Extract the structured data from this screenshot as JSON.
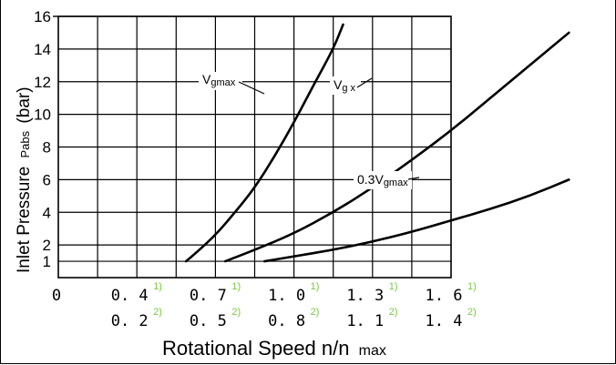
{
  "chart_data": {
    "type": "line",
    "title": "",
    "ylabel": "Inlet Pressure",
    "ylabel_sub": "Pabs",
    "ylabel_unit": "(bar)",
    "xlabel": "Rotational Speed n/n",
    "xlabel_sub": "max",
    "ylim": [
      0,
      16
    ],
    "y_ticks": [
      "1",
      "2",
      "4",
      "6",
      "8",
      "10",
      "12",
      "14",
      "16"
    ],
    "y_tick_values": [
      1,
      2,
      4,
      6,
      8,
      10,
      12,
      14,
      16
    ],
    "x_origin_label": "0",
    "x_rows": [
      {
        "labels": [
          "0. 4",
          "0. 7",
          "1. 0",
          "1. 3",
          "1. 6"
        ],
        "note": "1)"
      },
      {
        "labels": [
          "0. 2",
          "0. 5",
          "0. 8",
          "1. 1",
          "1. 4"
        ],
        "note": "2)"
      }
    ],
    "grid": true,
    "series": [
      {
        "name": "Vgmax",
        "points": [
          [
            0.325,
            1
          ],
          [
            0.35,
            1.5
          ],
          [
            0.4,
            2.6
          ],
          [
            0.45,
            4.0
          ],
          [
            0.5,
            5.5
          ],
          [
            0.55,
            7.4
          ],
          [
            0.6,
            9.5
          ],
          [
            0.65,
            11.8
          ],
          [
            0.7,
            14.0
          ],
          [
            0.725,
            15.5
          ]
        ]
      },
      {
        "name": "Vg x",
        "points": [
          [
            0.425,
            1
          ],
          [
            0.5,
            1.7
          ],
          [
            0.6,
            2.7
          ],
          [
            0.7,
            4.0
          ],
          [
            0.8,
            5.5
          ],
          [
            0.9,
            7.2
          ],
          [
            1.0,
            9.0
          ],
          [
            1.1,
            11.0
          ],
          [
            1.2,
            13.0
          ],
          [
            1.3,
            15.0
          ]
        ]
      },
      {
        "name": "0.3Vgmax",
        "points": [
          [
            0.525,
            1
          ],
          [
            0.6,
            1.3
          ],
          [
            0.7,
            1.7
          ],
          [
            0.8,
            2.2
          ],
          [
            0.9,
            2.8
          ],
          [
            1.0,
            3.5
          ],
          [
            1.1,
            4.2
          ],
          [
            1.2,
            5.0
          ],
          [
            1.3,
            6.0
          ]
        ]
      }
    ],
    "annotations": [
      {
        "main": "V",
        "sub": "gmax",
        "series": "Vgmax"
      },
      {
        "main": "V",
        "sub": "g x",
        "series": "Vg x"
      },
      {
        "main": "0.3V",
        "sub": "gmax",
        "series": "0.3Vgmax"
      }
    ]
  }
}
